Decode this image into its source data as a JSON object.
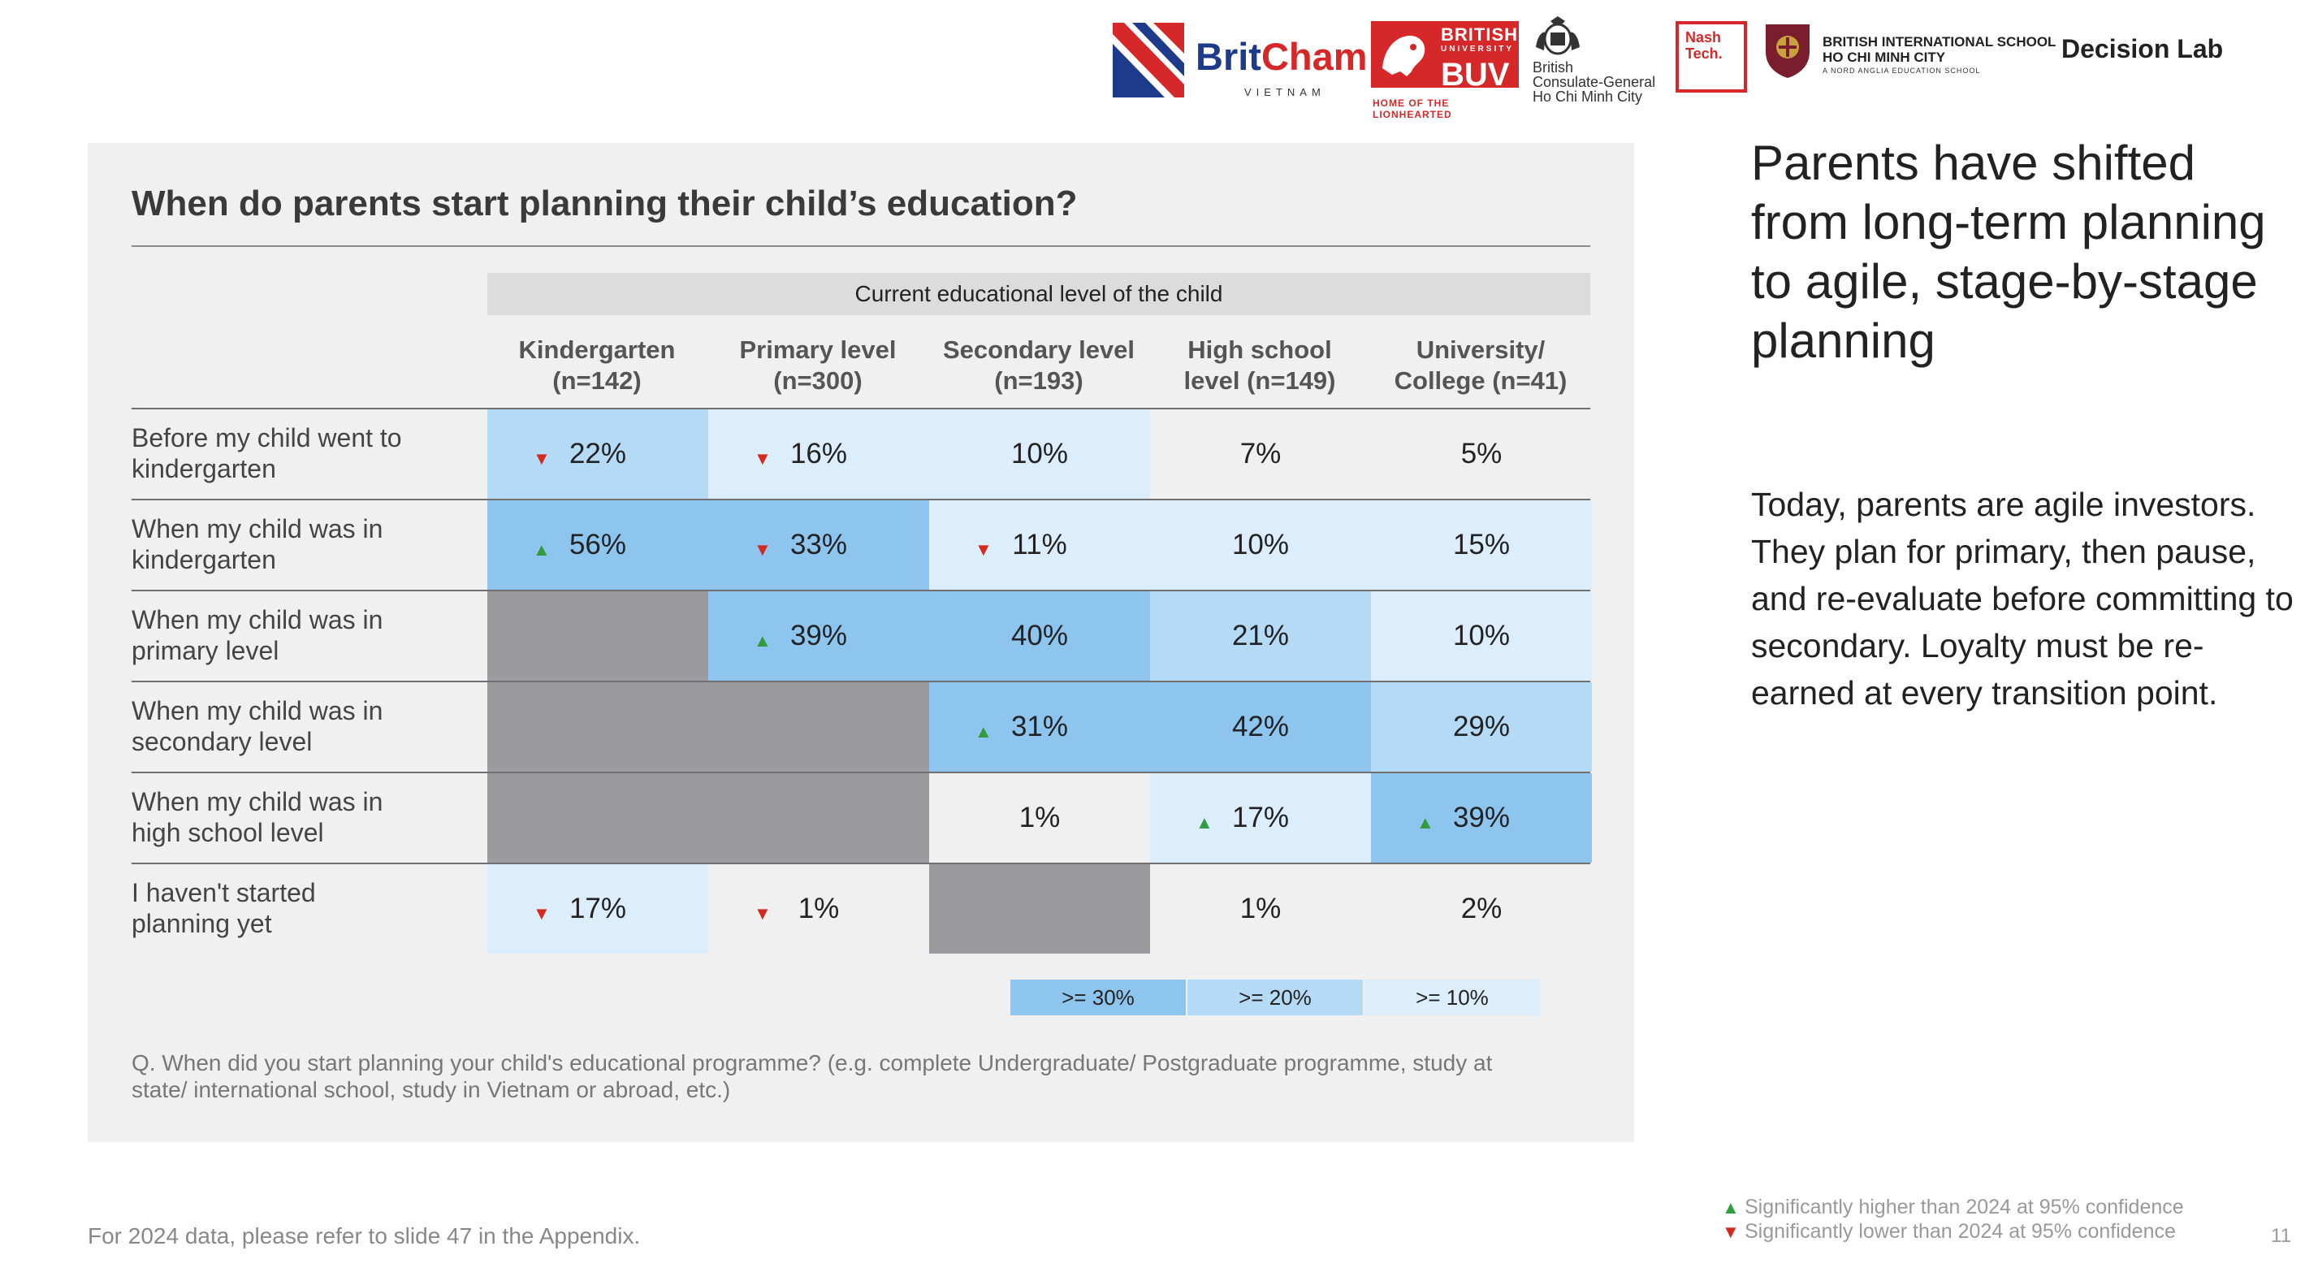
{
  "logos": {
    "britcham": {
      "name_part1": "Brit",
      "name_part2": "Cham",
      "sub": "VIETNAM"
    },
    "buv": {
      "line1": "BRITISH",
      "line2": "UNIVERSITY",
      "line3": "BUV",
      "tagline": "HOME OF THE LIONHEARTED"
    },
    "consulate": {
      "line1": "British",
      "line2": "Consulate-General",
      "line3": "Ho Chi Minh City"
    },
    "nashtech": {
      "line1": "Nash",
      "line2": "Tech."
    },
    "bis": {
      "line1": "BRITISH INTERNATIONAL SCHOOL",
      "line2": "HO CHI MINH CITY",
      "line3": "A NORD ANGLIA EDUCATION SCHOOL"
    },
    "decision_lab": "Decision Lab"
  },
  "panel": {
    "title": "When do parents start planning their child’s education?",
    "group_header": "Current educational level of the child",
    "columns": [
      {
        "line1": "Kindergarten",
        "line2": "(n=142)"
      },
      {
        "line1": "Primary level",
        "line2": "(n=300)"
      },
      {
        "line1": "Secondary level",
        "line2": "(n=193)"
      },
      {
        "line1": "High school",
        "line2": "level (n=149)"
      },
      {
        "line1": "University/",
        "line2": "College (n=41)"
      }
    ],
    "rows": [
      {
        "label_line1": "Before my child went to",
        "label_line2": "kindergarten",
        "cells": [
          {
            "value": "22%",
            "shade": "20",
            "arrow": "down"
          },
          {
            "value": "16%",
            "shade": "10",
            "arrow": "down"
          },
          {
            "value": "10%",
            "shade": "10",
            "arrow": ""
          },
          {
            "value": "7%",
            "shade": "none",
            "arrow": ""
          },
          {
            "value": "5%",
            "shade": "none",
            "arrow": ""
          }
        ]
      },
      {
        "label_line1": "When my child was in",
        "label_line2": "kindergarten",
        "cells": [
          {
            "value": "56%",
            "shade": "30",
            "arrow": "up"
          },
          {
            "value": "33%",
            "shade": "30",
            "arrow": "down"
          },
          {
            "value": "11%",
            "shade": "10",
            "arrow": "down"
          },
          {
            "value": "10%",
            "shade": "10",
            "arrow": ""
          },
          {
            "value": "15%",
            "shade": "10",
            "arrow": ""
          }
        ]
      },
      {
        "label_line1": "When my child was in",
        "label_line2": "primary level",
        "cells": [
          {
            "value": "",
            "shade": "na",
            "arrow": ""
          },
          {
            "value": "39%",
            "shade": "30",
            "arrow": "up"
          },
          {
            "value": "40%",
            "shade": "30",
            "arrow": ""
          },
          {
            "value": "21%",
            "shade": "20",
            "arrow": ""
          },
          {
            "value": "10%",
            "shade": "10",
            "arrow": ""
          }
        ]
      },
      {
        "label_line1": "When my child was in",
        "label_line2": "secondary level",
        "cells": [
          {
            "value": "",
            "shade": "na",
            "arrow": ""
          },
          {
            "value": "",
            "shade": "na",
            "arrow": ""
          },
          {
            "value": "31%",
            "shade": "30",
            "arrow": "up"
          },
          {
            "value": "42%",
            "shade": "30",
            "arrow": ""
          },
          {
            "value": "29%",
            "shade": "20",
            "arrow": ""
          }
        ]
      },
      {
        "label_line1": "When my child was in",
        "label_line2": "high school level",
        "cells": [
          {
            "value": "",
            "shade": "na",
            "arrow": ""
          },
          {
            "value": "",
            "shade": "na",
            "arrow": ""
          },
          {
            "value": "1%",
            "shade": "none",
            "arrow": ""
          },
          {
            "value": "17%",
            "shade": "10",
            "arrow": "up"
          },
          {
            "value": "39%",
            "shade": "30",
            "arrow": "up"
          }
        ]
      },
      {
        "label_line1": "I haven't started",
        "label_line2": "planning yet",
        "cells": [
          {
            "value": "17%",
            "shade": "10",
            "arrow": "down"
          },
          {
            "value": "1%",
            "shade": "none",
            "arrow": "down"
          },
          {
            "value": "",
            "shade": "na",
            "arrow": ""
          },
          {
            "value": "1%",
            "shade": "none",
            "arrow": ""
          },
          {
            "value": "2%",
            "shade": "none",
            "arrow": ""
          }
        ]
      }
    ],
    "legend": [
      ">= 30%",
      ">= 20%",
      ">= 10%"
    ],
    "question": "Q. When did you start planning your child's educational programme? (e.g. complete Undergraduate/ Postgraduate programme, study at state/ international school, study in Vietnam or abroad, etc.)"
  },
  "headline": "Parents have shifted from long-term planning to agile, stage-by-stage planning",
  "body": "Today, parents are agile investors. They plan for primary, then pause, and re-evaluate before committing to secondary. Loyalty must be re-earned at every transition point.",
  "footer": {
    "appendix_note": "For 2024 data, please refer to slide 47 in the Appendix.",
    "sig_higher": "Significantly higher than 2024 at 95% confidence",
    "sig_lower": "Significantly lower than 2024 at 95% confidence",
    "page_number": "11"
  },
  "colors": {
    "shade_30": "#8ec5ef",
    "shade_20": "#b5daf6",
    "shade_10": "#dcedfb",
    "not_applicable": "#9b9b9d",
    "up_arrow": "#2e9e3e",
    "down_arrow": "#d42a1e"
  }
}
